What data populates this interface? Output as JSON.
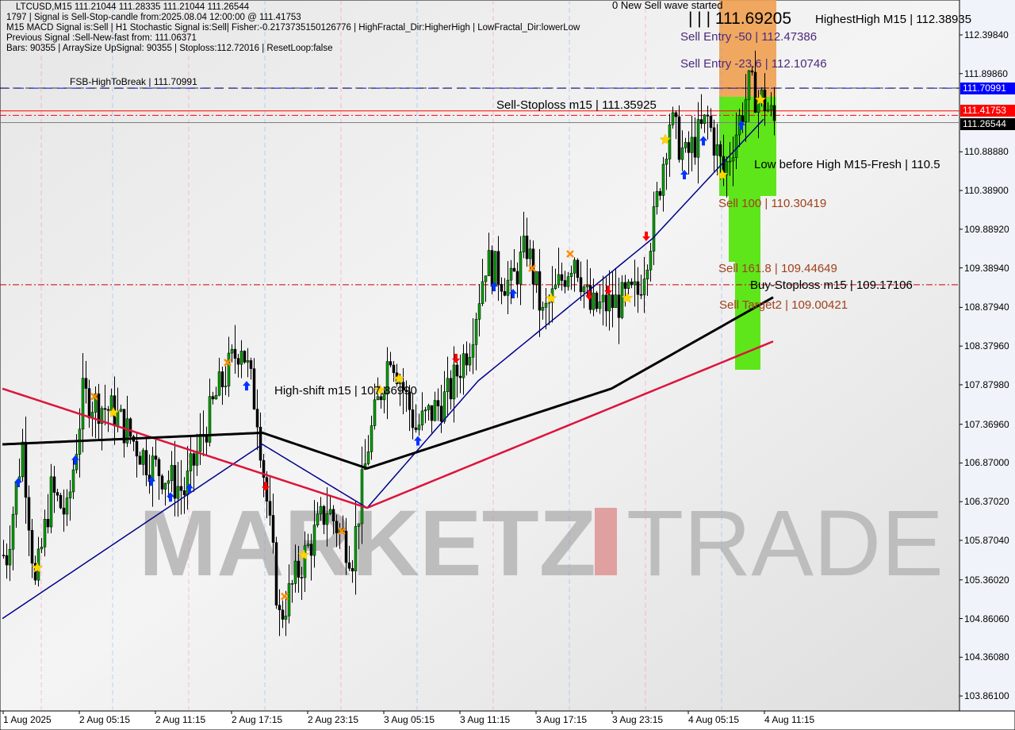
{
  "header": {
    "symbol_line": "LTCUSD,M15  111.21044 111.28335 111.21044 111.26544",
    "signal_line": "1797 | Signal is Sell-Stop-candle from:2025.08.04 12:00:00 @ 111.41753",
    "macd_line": "M15 MACD Signal is:Sell | H1 Stochastic Signal is:Sell| Fisher:-0.2173735150126776 | HighFractal_Dir:HigherHigh | LowFractal_Dir:lowerLow",
    "prev_line": "Previous Signal :Sell-New-fast from: 111.06371",
    "bars_line": "Bars: 90355 | ArraySize UpSignal: 90355 | Stoploss:112.72016 | ResetLoop:false"
  },
  "annotations": {
    "fsb": "FSB-HighToBreak | 111.70991",
    "sell_stoploss": "Sell-Stoploss m15 | 111.35925",
    "high_shift": "High-shift m15 | 107.86990",
    "new_wave": "0 New Sell wave started",
    "big_price": "| | | 111.69205",
    "highest_high": "HighestHigh    M15 | 112.38935",
    "sell_entry_50": "Sell Entry -50 | 112.47386",
    "sell_entry_236": "Sell Entry -23.6 | 112.10746",
    "low_before_high": "Low before High    M15-Fresh | 110.5",
    "sell_100": "Sell 100 | 110.30419",
    "sell_1618": "Sell 161.8 | 109.44649",
    "buy_stoploss": "Buy-Stoploss m15 | 109.17106",
    "sell_target2": "Sell Target2 | 109.00421"
  },
  "watermark": {
    "left": "MARKETZ",
    "right": "TRADE"
  },
  "price_tags": [
    {
      "value": "111.70991",
      "color": "#0000ff"
    },
    {
      "value": "111.41753",
      "color": "#ff0000"
    },
    {
      "value": "111.26544",
      "color": "#000000"
    }
  ],
  "colors": {
    "bull": "#00a000",
    "bear": "#000000",
    "ma_black": "#000000",
    "ma_red": "#dc143c",
    "ma_blue": "#00008b",
    "zone_orange": "#f0a050",
    "zone_green": "#5ee61a"
  },
  "chart_data": {
    "type": "candlestick",
    "ylim": [
      103.6,
      112.8
    ],
    "y_ticks": [
      "112.39840",
      "111.89860",
      "110.88880",
      "110.38900",
      "109.88920",
      "109.38940",
      "108.87940",
      "108.37960",
      "107.87980",
      "107.36960",
      "106.87000",
      "106.37020",
      "105.87040",
      "105.36020",
      "104.86060",
      "104.36080",
      "103.86100"
    ],
    "x_ticks": [
      "1 Aug 2025",
      "2 Aug 05:15",
      "2 Aug 11:15",
      "2 Aug 17:15",
      "2 Aug 23:15",
      "3 Aug 05:15",
      "3 Aug 11:15",
      "3 Aug 17:15",
      "3 Aug 23:15",
      "4 Aug 05:15",
      "4 Aug 11:15"
    ],
    "close_path": [
      [
        1,
        105.68
      ],
      [
        6,
        107.11
      ],
      [
        10,
        105.27
      ],
      [
        15,
        106.5
      ],
      [
        20,
        106.19
      ],
      [
        25,
        107.73
      ],
      [
        35,
        107.52
      ],
      [
        45,
        106.91
      ],
      [
        57,
        106.5
      ],
      [
        67,
        107.73
      ],
      [
        75,
        108.44
      ],
      [
        80,
        107.52
      ],
      [
        87,
        104.86
      ],
      [
        95,
        105.68
      ],
      [
        102,
        106.29
      ],
      [
        110,
        105.68
      ],
      [
        115,
        107.11
      ],
      [
        122,
        108.34
      ],
      [
        130,
        107.32
      ],
      [
        140,
        107.73
      ],
      [
        147,
        108.44
      ],
      [
        152,
        109.47
      ],
      [
        160,
        109.16
      ],
      [
        165,
        109.67
      ],
      [
        170,
        108.75
      ],
      [
        180,
        109.57
      ],
      [
        185,
        108.85
      ],
      [
        195,
        108.96
      ],
      [
        200,
        109.06
      ],
      [
        205,
        109.98
      ],
      [
        210,
        111.31
      ],
      [
        215,
        110.8
      ],
      [
        222,
        111.31
      ],
      [
        227,
        110.59
      ],
      [
        235,
        111.72
      ],
      [
        240,
        111.52
      ],
      [
        243,
        111.27
      ]
    ],
    "ma_black": [
      [
        0,
        107.11
      ],
      [
        82,
        107.26
      ],
      [
        115,
        106.8
      ],
      [
        192,
        107.83
      ],
      [
        243,
        109.01
      ]
    ],
    "ma_red": [
      [
        0,
        107.83
      ],
      [
        115,
        106.29
      ],
      [
        243,
        108.44
      ]
    ],
    "ma_blue": [
      [
        0,
        104.86
      ],
      [
        82,
        107.11
      ],
      [
        115,
        106.29
      ],
      [
        150,
        107.93
      ],
      [
        205,
        109.77
      ],
      [
        240,
        111.31
      ]
    ],
    "levels": [
      {
        "price": 111.70991,
        "color": "#0000ff",
        "style": "dashed"
      },
      {
        "price": 111.41753,
        "color": "#ff0000",
        "style": "solid"
      },
      {
        "price": 111.35925,
        "color": "#ff0000",
        "style": "dashdot"
      },
      {
        "price": 111.26544,
        "color": "#808080",
        "style": "solid"
      },
      {
        "price": 109.17106,
        "color": "#cc0000",
        "style": "dashdot"
      }
    ]
  }
}
